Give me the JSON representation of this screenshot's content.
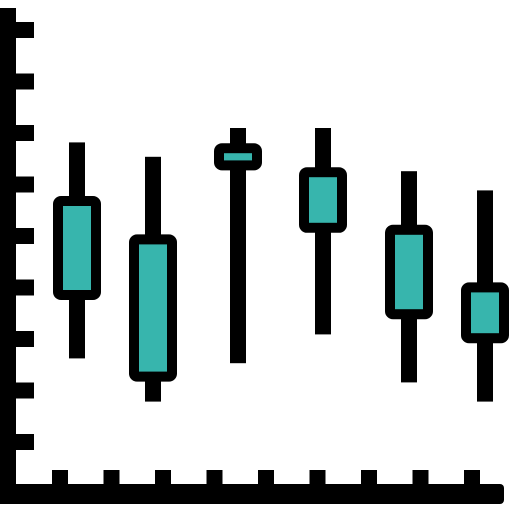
{
  "icon": {
    "name": "candlestick-chart-icon",
    "style": "filled-outline",
    "colors": {
      "outline": "#000000",
      "fill": "#37b5ad",
      "background": "#ffffff"
    },
    "axis": {
      "y_ticks": 9,
      "x_ticks": 9
    },
    "candles": [
      {
        "wick_low": 0.27,
        "body_low": 0.4,
        "body_high": 0.6,
        "wick_high": 0.72
      },
      {
        "wick_low": 0.18,
        "body_low": 0.23,
        "body_high": 0.52,
        "wick_high": 0.69
      },
      {
        "wick_low": 0.26,
        "body_low": 0.67,
        "body_high": 0.71,
        "wick_high": 0.75
      },
      {
        "wick_low": 0.32,
        "body_low": 0.54,
        "body_high": 0.66,
        "wick_high": 0.75
      },
      {
        "wick_low": 0.22,
        "body_low": 0.36,
        "body_high": 0.54,
        "wick_high": 0.66
      },
      {
        "wick_low": 0.18,
        "body_low": 0.31,
        "body_high": 0.42,
        "wick_high": 0.62
      }
    ]
  }
}
